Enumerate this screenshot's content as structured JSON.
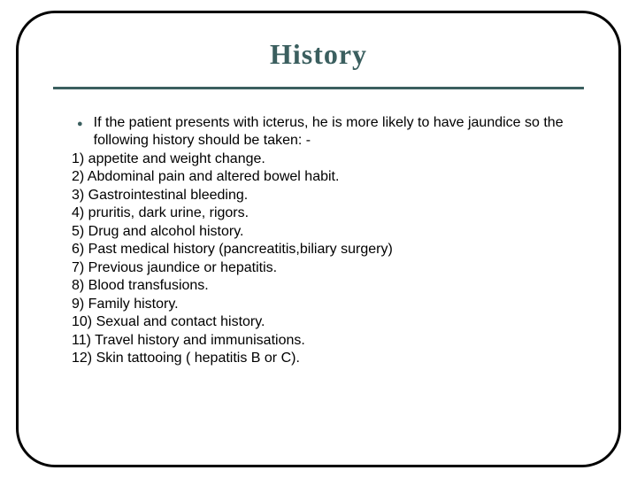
{
  "title": {
    "text": "History",
    "color": "#3b5f5f",
    "fontsize": 32
  },
  "divider": {
    "color": "#3b5f5f"
  },
  "content": {
    "color": "#000000",
    "fontsize": 16,
    "intro": "If the patient presents with icterus, he is more likely to have jaundice so the following history should be taken: -",
    "bullet_color": "#3b5f5f",
    "items": [
      "1) appetite and weight change.",
      "2) Abdominal pain and altered bowel habit.",
      "3) Gastrointestinal bleeding.",
      "4) pruritis, dark urine, rigors.",
      "5) Drug and alcohol history.",
      "6) Past medical history (pancreatitis,biliary surgery)",
      "7) Previous jaundice or hepatitis.",
      "8) Blood transfusions.",
      "9) Family history.",
      "10) Sexual and contact history.",
      "11) Travel history and immunisations.",
      "12) Skin tattooing ( hepatitis B or C)."
    ]
  }
}
